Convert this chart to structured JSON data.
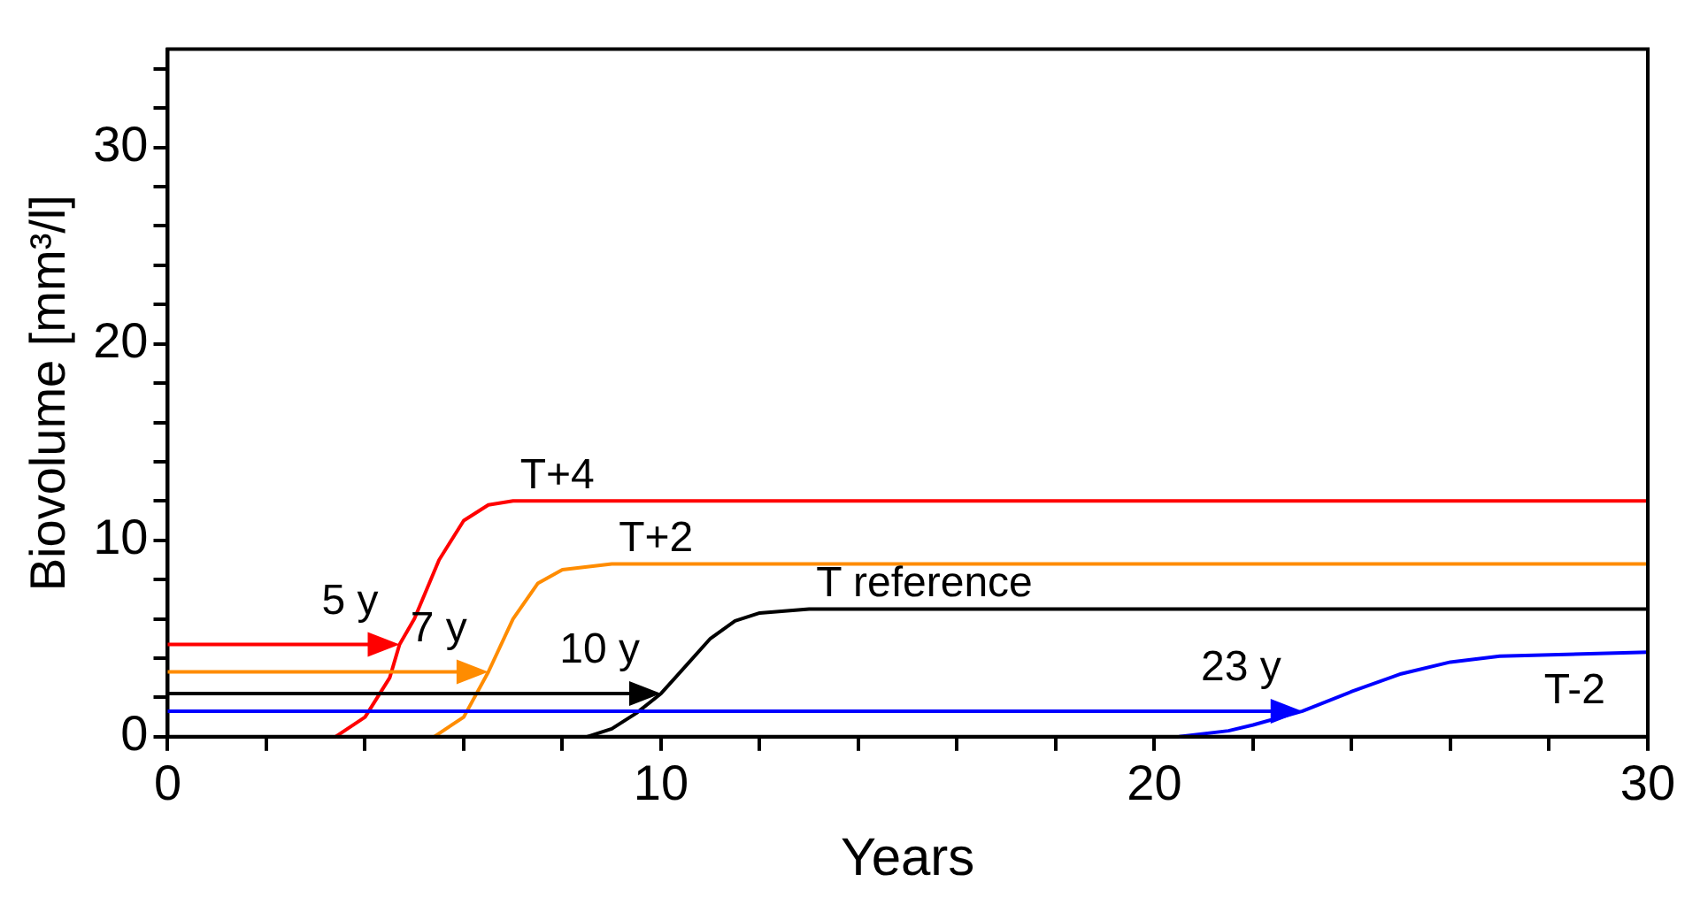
{
  "chart_data": {
    "type": "line",
    "xlabel": "Years",
    "ylabel": "Biovolume [mm³/l]",
    "xlim": [
      0,
      30
    ],
    "ylim": [
      0,
      35
    ],
    "xticks": [
      0,
      {
        "value": 2,
        "label": null
      },
      {
        "value": 4,
        "label": null
      },
      {
        "value": 6,
        "label": null
      },
      {
        "value": 8,
        "label": null
      },
      10,
      {
        "value": 12,
        "label": null
      },
      {
        "value": 14,
        "label": null
      },
      {
        "value": 16,
        "label": null
      },
      {
        "value": 18,
        "label": null
      },
      20,
      {
        "value": 22,
        "label": null
      },
      {
        "value": 24,
        "label": null
      },
      {
        "value": 26,
        "label": null
      },
      {
        "value": 28,
        "label": null
      },
      30
    ],
    "yticks": [
      0,
      {
        "value": 2,
        "label": null
      },
      {
        "value": 4,
        "label": null
      },
      {
        "value": 6,
        "label": null
      },
      {
        "value": 8,
        "label": null
      },
      10,
      {
        "value": 12,
        "label": null
      },
      {
        "value": 14,
        "label": null
      },
      {
        "value": 16,
        "label": null
      },
      {
        "value": 18,
        "label": null
      },
      20,
      {
        "value": 22,
        "label": null
      },
      {
        "value": 24,
        "label": null
      },
      {
        "value": 26,
        "label": null
      },
      {
        "value": 28,
        "label": null
      },
      30,
      {
        "value": 32,
        "label": null
      },
      {
        "value": 34,
        "label": null
      }
    ],
    "grid": false,
    "legend": false,
    "marker": "none",
    "line_style": "solid",
    "series": [
      {
        "name": "T+4",
        "color": "#ff0000",
        "x": [
          3.4,
          4,
          4.5,
          4.7,
          5,
          5.5,
          6,
          6.5,
          7,
          30
        ],
        "values": [
          0,
          1,
          3,
          4.7,
          6,
          9,
          11,
          11.8,
          12,
          12
        ]
      },
      {
        "name": "T+2",
        "color": "#ff8c00",
        "x": [
          5.4,
          6,
          6.5,
          7,
          7.5,
          8,
          9,
          30
        ],
        "values": [
          0,
          1,
          3.3,
          6,
          7.8,
          8.5,
          8.8,
          8.8
        ]
      },
      {
        "name": "T reference",
        "color": "#000000",
        "x": [
          8.5,
          9,
          9.5,
          10,
          10.5,
          11,
          11.5,
          12,
          13,
          30
        ],
        "values": [
          0,
          0.4,
          1.2,
          2.2,
          3.6,
          5,
          5.9,
          6.3,
          6.5,
          6.5
        ]
      },
      {
        "name": "T-2",
        "color": "#0000ff",
        "x": [
          20.5,
          21.5,
          22,
          23,
          24,
          25,
          26,
          27,
          30
        ],
        "values": [
          0,
          0.3,
          0.6,
          1.3,
          2.3,
          3.2,
          3.8,
          4.1,
          4.3
        ]
      }
    ],
    "annotations": [
      {
        "text": "5 y",
        "x": 4.7,
        "y": 4.7
      },
      {
        "text": "7 y",
        "x": 6.5,
        "y": 3.3
      },
      {
        "text": "10 y",
        "x": 10,
        "y": 2.2
      },
      {
        "text": "23 y",
        "x": 23,
        "y": 1.3
      }
    ]
  }
}
